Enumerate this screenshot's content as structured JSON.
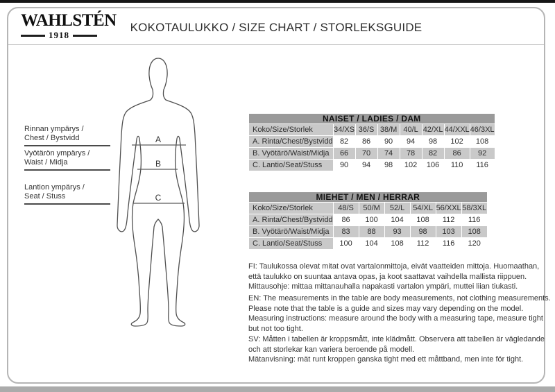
{
  "brand": {
    "name": "WAHLSTÉN",
    "year": "1918"
  },
  "header": {
    "title": "KOKOTAULUKKO / SIZE CHART / STORLEKSGUIDE"
  },
  "measurement_labels": [
    {
      "marker": "A",
      "line1": "Rinnan ympärys /",
      "line2": "Chest / Bystvidd"
    },
    {
      "marker": "B",
      "line1": "Vyötärön ympärys /",
      "line2": "Waist / Midja"
    },
    {
      "marker": "C",
      "line1": "Lantion ympärys /",
      "line2": "Seat / Stuss"
    }
  ],
  "figure": {
    "markers": [
      "A",
      "B",
      "C"
    ]
  },
  "tables": {
    "women": {
      "title": "NAISET / LADIES / DAM",
      "size_label": "Koko/Size/Storlek",
      "sizes": [
        "34/XS",
        "36/S",
        "38/M",
        "40/L",
        "42/XL",
        "44/XXL",
        "46/3XL"
      ],
      "rows": [
        {
          "label": "A. Rinta/Chest/Bystvidd",
          "values": [
            "82",
            "86",
            "90",
            "94",
            "98",
            "102",
            "108"
          ],
          "shaded": false
        },
        {
          "label": "B. Vyötärö/Waist/Midja",
          "values": [
            "66",
            "70",
            "74",
            "78",
            "82",
            "86",
            "92"
          ],
          "shaded": true
        },
        {
          "label": "C. Lantio/Seat/Stuss",
          "values": [
            "90",
            "94",
            "98",
            "102",
            "106",
            "110",
            "116"
          ],
          "shaded": false
        }
      ]
    },
    "men": {
      "title": "MIEHET / MEN / HERRAR",
      "size_label": "Koko/Size/Storlek",
      "sizes": [
        "48/S",
        "50/M",
        "52/L",
        "54/XL",
        "56/XXL",
        "58/3XL"
      ],
      "rows": [
        {
          "label": "A. Rinta/Chest/Bystvidd",
          "values": [
            "86",
            "100",
            "104",
            "108",
            "112",
            "116"
          ],
          "shaded": false
        },
        {
          "label": "B. Vyötärö/Waist/Midja",
          "values": [
            "83",
            "88",
            "93",
            "98",
            "103",
            "108"
          ],
          "shaded": true
        },
        {
          "label": "C. Lantio/Seat/Stuss",
          "values": [
            "100",
            "104",
            "108",
            "112",
            "116",
            "120"
          ],
          "shaded": false
        }
      ]
    }
  },
  "notes": {
    "fi": [
      "FI: Taulukossa olevat mitat ovat vartalonmittoja, eivät vaatteiden mittoja. Huomaathan,",
      "että taulukko on suuntaa antava opas, ja koot saattavat vaihdella mallista riippuen.",
      "Mittausohje: mittaa mittanauhalla napakasti vartalon ympäri, muttei liian tiukasti."
    ],
    "en": [
      "EN: The measurements in the table are body measurements, not clothing measurements.",
      "Please note that the table is a guide and sizes may vary depending on the model.",
      "Measuring instructions: measure around the body with a measuring tape, measure tight",
      "but not too tight."
    ],
    "sv": [
      "SV: Måtten i tabellen är kroppsmått, inte klädmått. Observera att tabellen är vägledande",
      "och att storlekar kan variera beroende på modell.",
      "Mätanvisning: mät runt kroppen ganska tight med ett måttband, men inte för tight."
    ]
  },
  "colors": {
    "table_header_bg": "#9a9a9a",
    "table_shade_bg": "#c9c9c9",
    "frame_border": "#b5b5b5",
    "top_bar": "#161616",
    "bottom_bar": "#ababab",
    "text": "#2d2d2d"
  }
}
